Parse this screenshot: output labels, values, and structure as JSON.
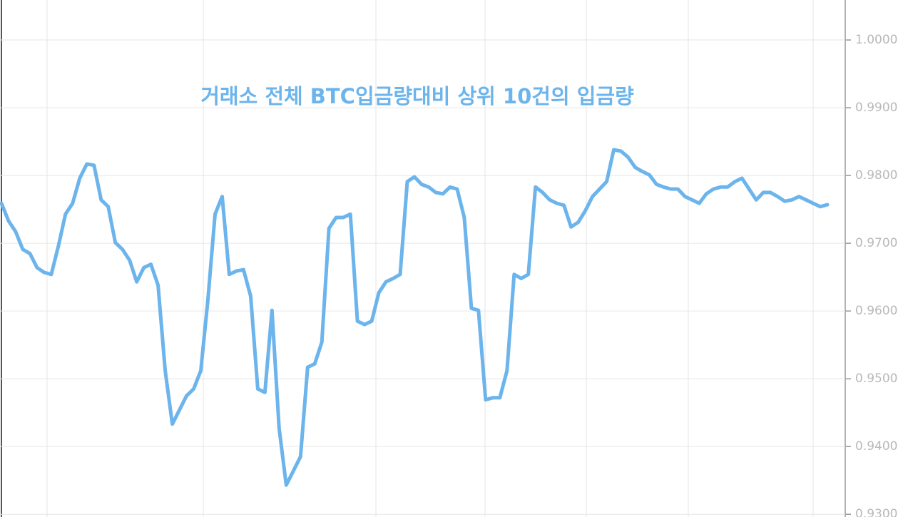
{
  "chart_data": {
    "type": "line",
    "title": "거래소 전체 BTC입금량대비 상위 10건의 입금량",
    "color": "#6cb4ec",
    "grid": true,
    "ylim": [
      0.9296,
      1.0059
    ],
    "yticks": [
      {
        "value": 0.93,
        "label": "0.9300"
      },
      {
        "value": 0.94,
        "label": "0.9400"
      },
      {
        "value": 0.95,
        "label": "0.9500"
      },
      {
        "value": 0.96,
        "label": "0.9600"
      },
      {
        "value": 0.97,
        "label": "0.9700"
      },
      {
        "value": 0.98,
        "label": "0.9800"
      },
      {
        "value": 0.99,
        "label": "0.9900"
      },
      {
        "value": 1.0,
        "label": "1.0000"
      }
    ],
    "values": [
      0.9759,
      0.9733,
      0.9717,
      0.9691,
      0.9685,
      0.9664,
      0.9657,
      0.9654,
      0.9696,
      0.9743,
      0.9759,
      0.9796,
      0.9817,
      0.9815,
      0.9764,
      0.9754,
      0.9701,
      0.9691,
      0.9675,
      0.9643,
      0.9664,
      0.9669,
      0.9638,
      0.9512,
      0.9433,
      0.9454,
      0.9475,
      0.9485,
      0.9512,
      0.9617,
      0.9743,
      0.9769,
      0.9654,
      0.9659,
      0.9661,
      0.9622,
      0.9485,
      0.948,
      0.9601,
      0.9427,
      0.9343,
      0.9364,
      0.9385,
      0.9517,
      0.9522,
      0.9554,
      0.9722,
      0.9738,
      0.9738,
      0.9743,
      0.9585,
      0.958,
      0.9585,
      0.9627,
      0.9643,
      0.9648,
      0.9654,
      0.9791,
      0.9798,
      0.9787,
      0.9783,
      0.9775,
      0.9773,
      0.9783,
      0.978,
      0.9738,
      0.9604,
      0.9601,
      0.9469,
      0.9472,
      0.9472,
      0.9512,
      0.9654,
      0.9648,
      0.9654,
      0.9783,
      0.9775,
      0.9764,
      0.9759,
      0.9756,
      0.9724,
      0.9731,
      0.9748,
      0.9769,
      0.978,
      0.9791,
      0.9838,
      0.9836,
      0.9827,
      0.9812,
      0.9806,
      0.9801,
      0.9787,
      0.9783,
      0.978,
      0.978,
      0.9769,
      0.9764,
      0.9759,
      0.9773,
      0.978,
      0.9783,
      0.9783,
      0.9791,
      0.9796,
      0.978,
      0.9764,
      0.9775,
      0.9775,
      0.9769,
      0.9762,
      0.9764,
      0.9769,
      0.9764,
      0.9759,
      0.9754,
      0.9757
    ]
  }
}
